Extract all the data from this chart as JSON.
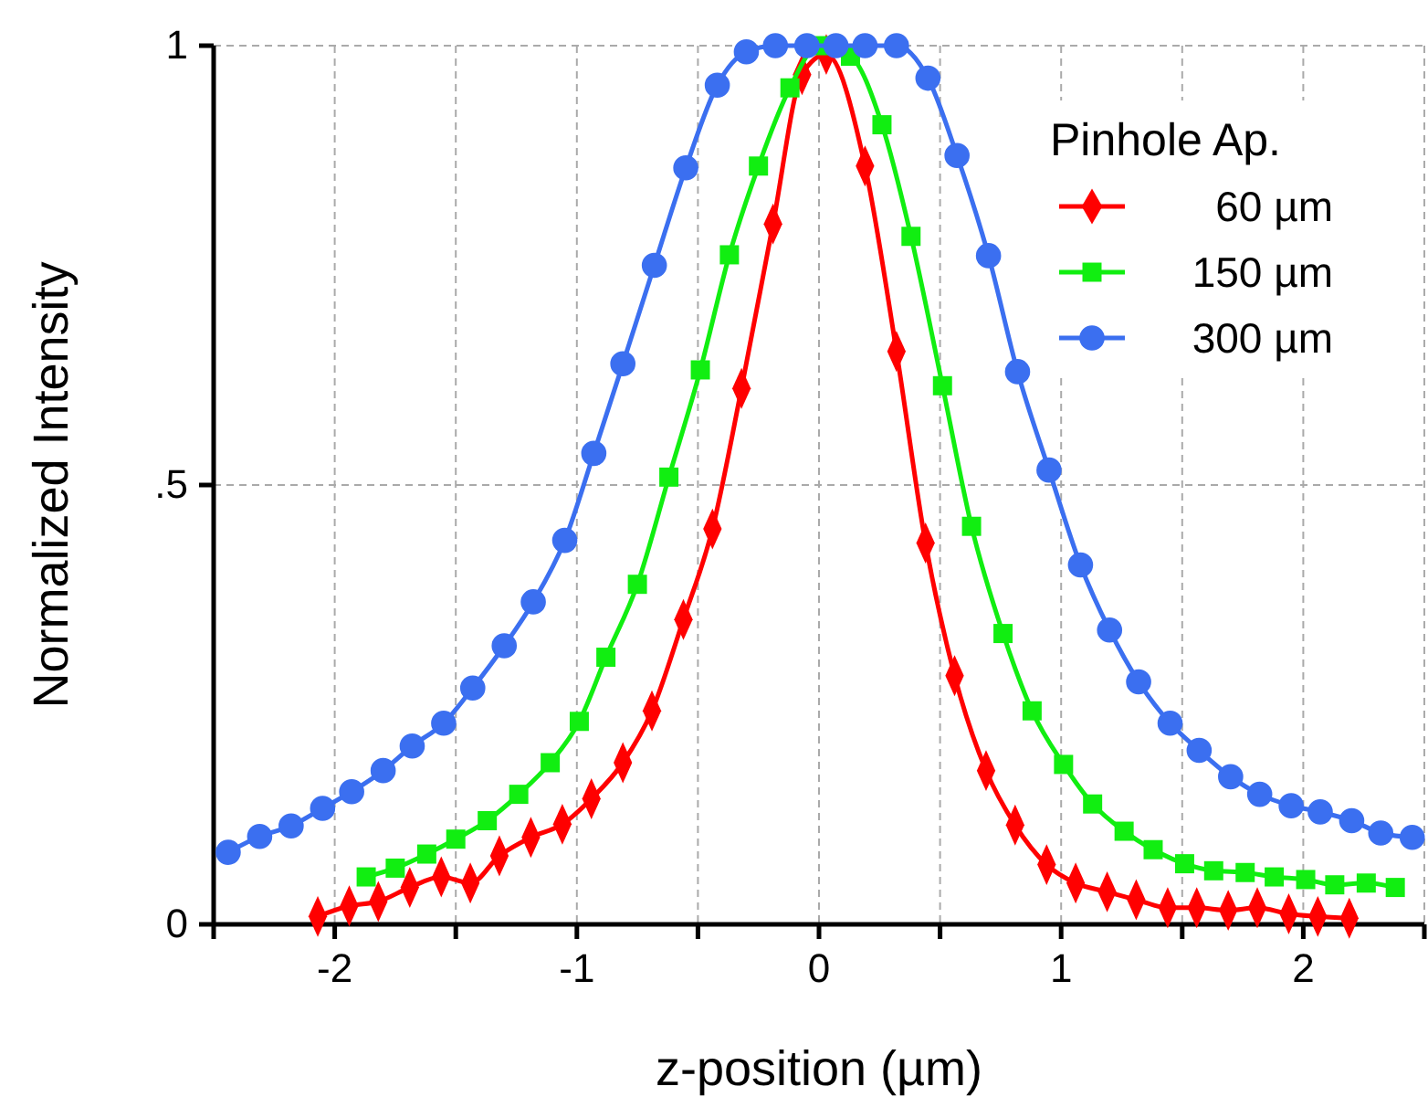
{
  "chart_data": {
    "type": "line",
    "xlabel": "z-position (µm)",
    "ylabel": "Normalized Intensity",
    "legend_title": "Pinhole Ap.",
    "legend": "top right",
    "grid": true,
    "line_style": "solid",
    "xlim": [
      -2.5,
      2.5
    ],
    "xticks": [
      {
        "value": -2.5,
        "label": null
      },
      -2,
      {
        "value": -1.5,
        "label": null
      },
      -1,
      {
        "value": -0.5,
        "label": null
      },
      0,
      {
        "value": 0.5,
        "label": null
      },
      1,
      {
        "value": 1.5,
        "label": null
      },
      2,
      {
        "value": 2.5,
        "label": null
      }
    ],
    "ylim": [
      0,
      1
    ],
    "yticks": [
      0,
      {
        "value": 0.5,
        "label": ".5"
      },
      1
    ],
    "series": [
      {
        "name": "60 µm",
        "color": "#ff0000",
        "marker": "diamond",
        "x": [
          -2.07,
          -1.94,
          -1.82,
          -1.69,
          -1.56,
          -1.44,
          -1.32,
          -1.19,
          -1.06,
          -0.94,
          -0.81,
          -0.69,
          -0.56,
          -0.44,
          -0.32,
          -0.19,
          -0.07,
          0.03,
          0.19,
          0.32,
          0.44,
          0.56,
          0.69,
          0.81,
          0.94,
          1.06,
          1.19,
          1.31,
          1.44,
          1.56,
          1.69,
          1.81,
          1.94,
          2.06,
          2.19
        ],
        "values": [
          0.009,
          0.021,
          0.026,
          0.042,
          0.054,
          0.047,
          0.078,
          0.099,
          0.114,
          0.143,
          0.184,
          0.243,
          0.347,
          0.45,
          0.61,
          0.797,
          0.967,
          0.99,
          0.863,
          0.652,
          0.434,
          0.283,
          0.175,
          0.113,
          0.068,
          0.047,
          0.037,
          0.028,
          0.019,
          0.019,
          0.016,
          0.019,
          0.012,
          0.009,
          0.007
        ]
      },
      {
        "name": "150 µm",
        "color": "#11ee11",
        "marker": "square",
        "x": [
          -1.87,
          -1.75,
          -1.62,
          -1.5,
          -1.37,
          -1.24,
          -1.11,
          -0.99,
          -0.88,
          -0.75,
          -0.62,
          -0.49,
          -0.37,
          -0.25,
          -0.12,
          0.0,
          0.13,
          0.26,
          0.38,
          0.51,
          0.63,
          0.76,
          0.88,
          1.01,
          1.13,
          1.26,
          1.38,
          1.51,
          1.63,
          1.76,
          1.88,
          2.01,
          2.13,
          2.26,
          2.38
        ],
        "values": [
          0.054,
          0.064,
          0.08,
          0.097,
          0.118,
          0.148,
          0.184,
          0.231,
          0.304,
          0.387,
          0.509,
          0.631,
          0.762,
          0.863,
          0.952,
          1.0,
          0.988,
          0.91,
          0.783,
          0.613,
          0.453,
          0.331,
          0.243,
          0.182,
          0.137,
          0.106,
          0.085,
          0.069,
          0.061,
          0.059,
          0.054,
          0.051,
          0.045,
          0.047,
          0.042
        ]
      },
      {
        "name": "300 µm",
        "color": "#3b6ff0",
        "marker": "circle",
        "x": [
          -2.44,
          -2.31,
          -2.18,
          -2.05,
          -1.93,
          -1.8,
          -1.68,
          -1.55,
          -1.43,
          -1.3,
          -1.18,
          -1.05,
          -0.93,
          -0.81,
          -0.68,
          -0.55,
          -0.42,
          -0.3,
          -0.18,
          -0.05,
          0.07,
          0.19,
          0.32,
          0.45,
          0.57,
          0.7,
          0.82,
          0.95,
          1.08,
          1.2,
          1.32,
          1.45,
          1.57,
          1.7,
          1.82,
          1.95,
          2.07,
          2.2,
          2.32,
          2.45
        ],
        "values": [
          0.082,
          0.1,
          0.112,
          0.132,
          0.151,
          0.175,
          0.203,
          0.229,
          0.269,
          0.317,
          0.367,
          0.437,
          0.536,
          0.638,
          0.75,
          0.861,
          0.955,
          0.993,
          1.0,
          1.0,
          1.0,
          1.0,
          1.0,
          0.963,
          0.875,
          0.761,
          0.629,
          0.517,
          0.409,
          0.335,
          0.276,
          0.229,
          0.198,
          0.168,
          0.148,
          0.135,
          0.128,
          0.118,
          0.104,
          0.099
        ]
      }
    ]
  }
}
